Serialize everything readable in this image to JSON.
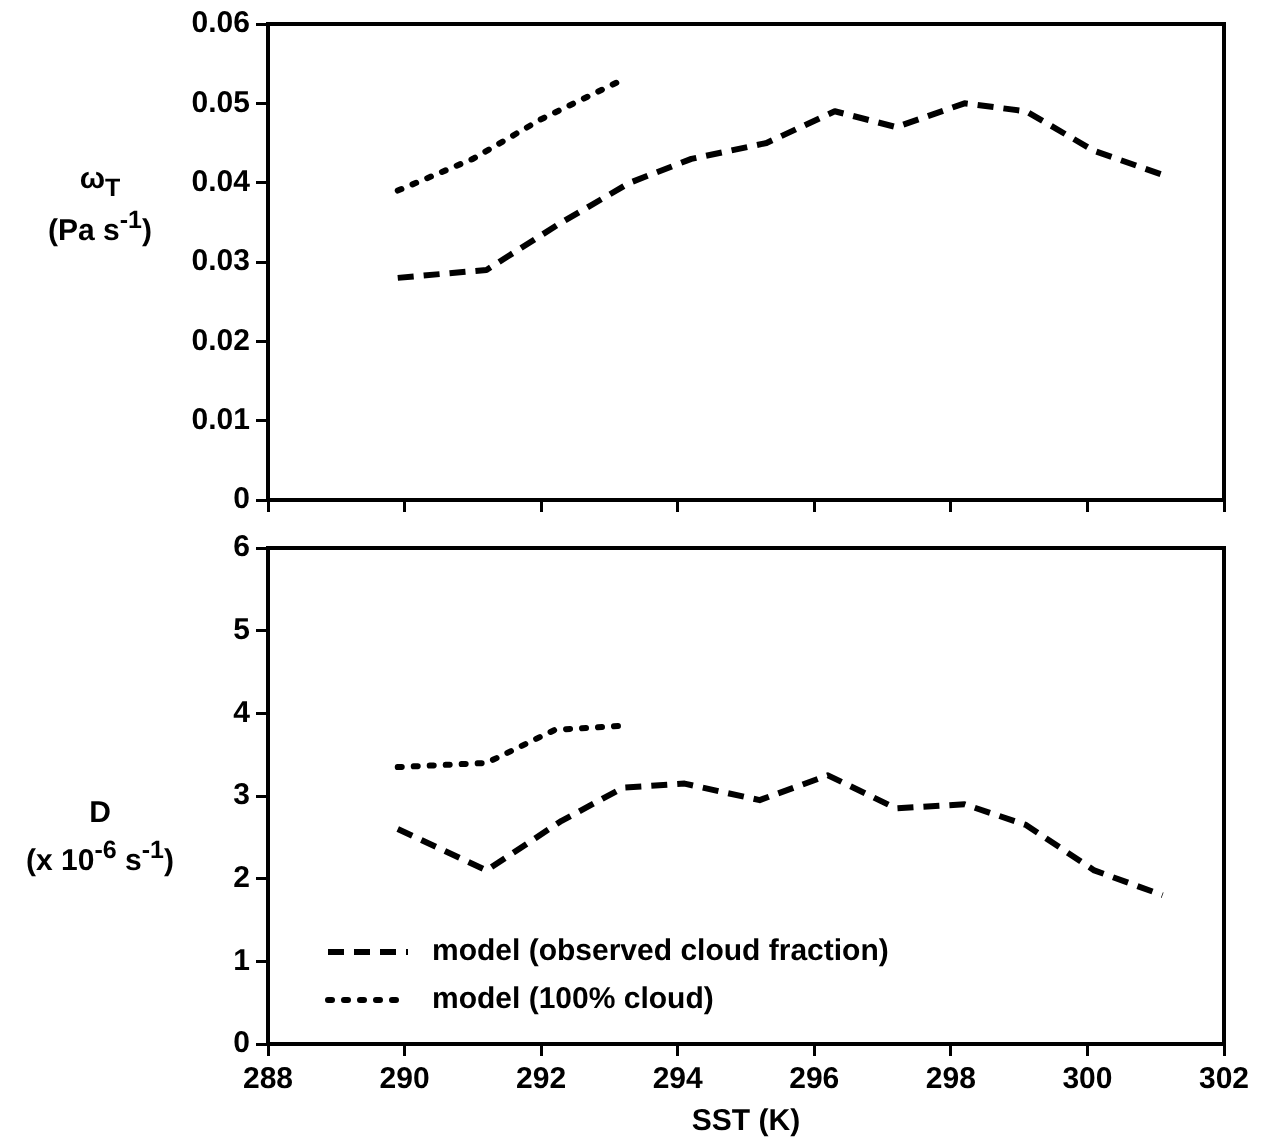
{
  "chart_data": [
    {
      "type": "line",
      "ylabel": "ω$_{T}$\n(Pa s$^{-1}$)",
      "xlim": [
        288,
        302
      ],
      "xticks": [
        288,
        290,
        292,
        294,
        296,
        298,
        300,
        302
      ],
      "ylim": [
        0,
        0.06
      ],
      "yticks": [
        0,
        0.01,
        0.02,
        0.03,
        0.04,
        0.05,
        0.06
      ],
      "tick_labels": "y",
      "grid": false,
      "legend": false,
      "marker": "none",
      "series": [
        {
          "color": "#000000",
          "line_style": "dashed",
          "x": [
            289.9,
            291.2,
            292.3,
            293.3,
            294.2,
            295.3,
            296.3,
            297.2,
            298.2,
            299.1,
            300.1,
            301.1
          ],
          "values": [
            0.028,
            0.029,
            0.035,
            0.04,
            0.043,
            0.045,
            0.049,
            0.047,
            0.05,
            0.049,
            0.044,
            0.041
          ]
        },
        {
          "color": "#000000",
          "line_style": "dotted",
          "x": [
            289.9,
            291.0,
            292.0,
            293.2
          ],
          "values": [
            0.039,
            0.043,
            0.048,
            0.053
          ]
        }
      ]
    },
    {
      "type": "line",
      "xlabel": "SST (K)",
      "ylabel": "D\n(x 10$^{-6}$ s$^{-1}$)",
      "xlim": [
        288,
        302
      ],
      "xticks": [
        288,
        290,
        292,
        294,
        296,
        298,
        300,
        302
      ],
      "ylim": [
        0,
        6
      ],
      "yticks": [
        0,
        1,
        2,
        3,
        4,
        5,
        6
      ],
      "grid": false,
      "legend": "bottom left",
      "marker": "none",
      "series": [
        {
          "name": "model (observed cloud fraction)",
          "color": "#000000",
          "line_style": "dashed",
          "x": [
            289.9,
            291.2,
            292.3,
            293.2,
            294.1,
            295.2,
            296.2,
            297.2,
            298.2,
            299.1,
            300.1,
            301.1
          ],
          "values": [
            2.6,
            2.1,
            2.7,
            3.1,
            3.15,
            2.95,
            3.25,
            2.85,
            2.9,
            2.65,
            2.1,
            1.8
          ]
        },
        {
          "name": "model (100% cloud)",
          "color": "#000000",
          "line_style": "dotted",
          "x": [
            289.9,
            291.2,
            292.2,
            293.2
          ],
          "values": [
            3.35,
            3.4,
            3.8,
            3.85
          ]
        }
      ]
    }
  ]
}
